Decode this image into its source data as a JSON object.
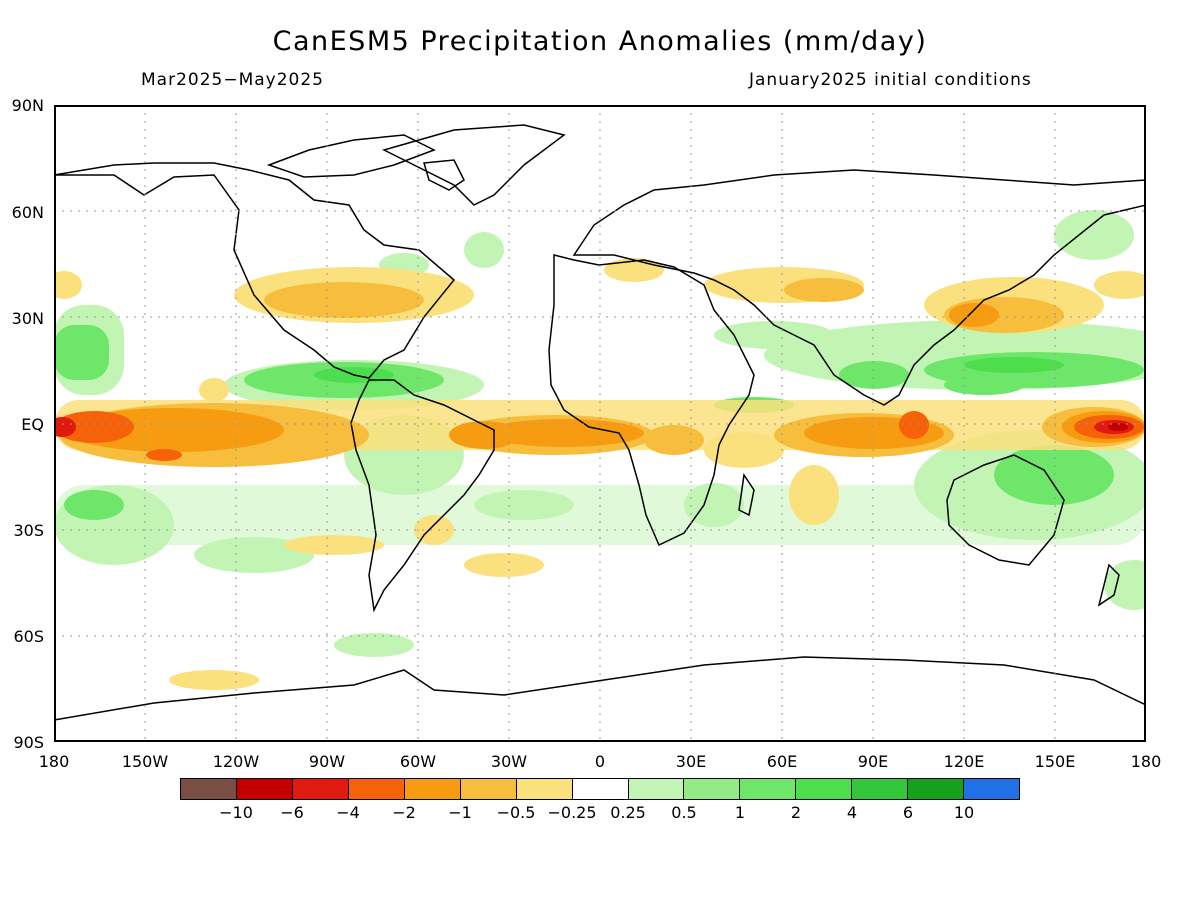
{
  "header": {
    "title": "CanESM5 Precipitation Anomalies (mm/day)",
    "subtitle_left": "Mar2025−May2025",
    "subtitle_right": "January2025 initial conditions"
  },
  "axes": {
    "lat_labels": [
      "90N",
      "60N",
      "30N",
      "EQ",
      "30S",
      "60S",
      "90S"
    ],
    "lon_labels": [
      "180",
      "150W",
      "120W",
      "90W",
      "60W",
      "30W",
      "0",
      "30E",
      "60E",
      "90E",
      "120E",
      "150E",
      "180"
    ],
    "grid": "dotted"
  },
  "colorbar": {
    "colors": [
      "#7a4e45",
      "#c20000",
      "#e01a10",
      "#f5620a",
      "#f79c10",
      "#f7bd3c",
      "#fae17d",
      "#ffffff",
      "#c2f5b4",
      "#93eb85",
      "#6ee66a",
      "#4dde4d",
      "#33c53a",
      "#15a21a",
      "#2170e6"
    ],
    "labels": [
      "−10",
      "−6",
      "−4",
      "−2",
      "−1",
      "−0.5",
      "−0.25",
      "0.25",
      "0.5",
      "1",
      "2",
      "4",
      "6",
      "10"
    ]
  },
  "map": {
    "projection": "equirectangular",
    "lon_range": [
      -180,
      180
    ],
    "lat_range": [
      -90,
      90
    ],
    "variable": "precipitation anomaly",
    "units": "mm/day"
  }
}
